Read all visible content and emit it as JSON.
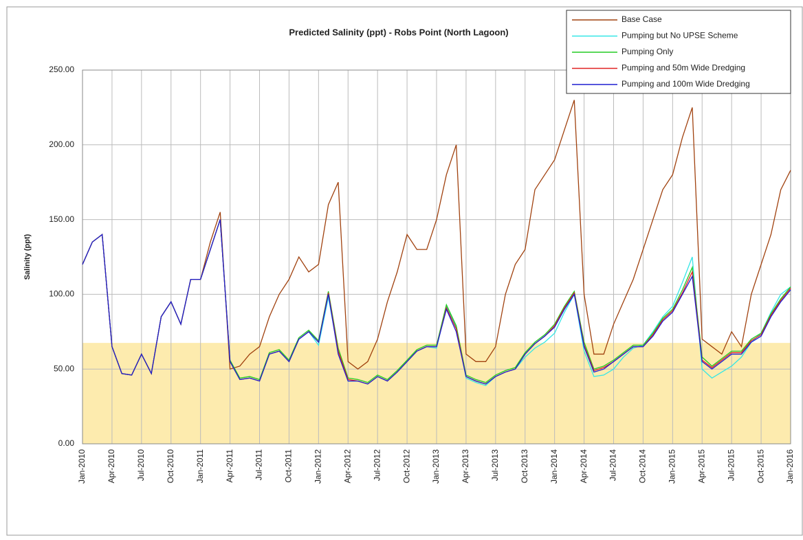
{
  "chart_data": {
    "type": "line",
    "title": "Predicted Salinity (ppt) - Robs Point (North Lagoon)",
    "y_label": "Salinity (ppt)",
    "x": [
      "2010-01",
      "2010-02",
      "2010-03",
      "2010-04",
      "2010-05",
      "2010-06",
      "2010-07",
      "2010-08",
      "2010-09",
      "2010-10",
      "2010-11",
      "2010-12",
      "2011-01",
      "2011-02",
      "2011-03",
      "2011-04",
      "2011-05",
      "2011-06",
      "2011-07",
      "2011-08",
      "2011-09",
      "2011-10",
      "2011-11",
      "2011-12",
      "2012-01",
      "2012-02",
      "2012-03",
      "2012-04",
      "2012-05",
      "2012-06",
      "2012-07",
      "2012-08",
      "2012-09",
      "2012-10",
      "2012-11",
      "2012-12",
      "2013-01",
      "2013-02",
      "2013-03",
      "2013-04",
      "2013-05",
      "2013-06",
      "2013-07",
      "2013-08",
      "2013-09",
      "2013-10",
      "2013-11",
      "2013-12",
      "2014-01",
      "2014-02",
      "2014-03",
      "2014-04",
      "2014-05",
      "2014-06",
      "2014-07",
      "2014-08",
      "2014-09",
      "2014-10",
      "2014-11",
      "2014-12",
      "2015-01",
      "2015-02",
      "2015-03",
      "2015-04",
      "2015-05",
      "2015-06",
      "2015-07",
      "2015-08",
      "2015-09",
      "2015-10",
      "2015-11",
      "2015-12",
      "2016-01"
    ],
    "series": [
      {
        "name": "Base Case",
        "color": "#a0410e",
        "values": [
          120,
          135,
          140,
          65,
          47,
          46,
          60,
          47,
          85,
          95,
          80,
          110,
          110,
          135,
          155,
          50,
          52,
          60,
          65,
          85,
          100,
          110,
          125,
          115,
          120,
          160,
          175,
          55,
          50,
          55,
          70,
          95,
          115,
          140,
          130,
          130,
          150,
          180,
          200,
          60,
          55,
          55,
          65,
          100,
          120,
          130,
          170,
          180,
          190,
          210,
          230,
          100,
          60,
          60,
          80,
          95,
          110,
          130,
          150,
          170,
          180,
          205,
          225,
          70,
          65,
          60,
          75,
          65,
          100,
          120,
          140,
          170,
          183
        ]
      },
      {
        "name": "Pumping but No UPSE Scheme",
        "color": "#33e6e6",
        "values": [
          120,
          135,
          140,
          65,
          47,
          46,
          60,
          47,
          85,
          95,
          80,
          110,
          110,
          130,
          150,
          55,
          43,
          44,
          42,
          60,
          62,
          55,
          70,
          75,
          66,
          98,
          62,
          42,
          42,
          40,
          45,
          42,
          48,
          55,
          62,
          65,
          64,
          92,
          78,
          44,
          41,
          39,
          45,
          48,
          50,
          58,
          64,
          68,
          74,
          88,
          100,
          62,
          45,
          46,
          50,
          58,
          64,
          66,
          75,
          85,
          92,
          108,
          125,
          50,
          44,
          48,
          52,
          58,
          68,
          74,
          88,
          100,
          105
        ]
      },
      {
        "name": "Pumping Only",
        "color": "#22cc22",
        "values": [
          120,
          135,
          140,
          65,
          47,
          46,
          60,
          47,
          85,
          95,
          80,
          110,
          110,
          130,
          150,
          56,
          44,
          45,
          43,
          61,
          63,
          56,
          71,
          76,
          69,
          102,
          64,
          44,
          43,
          41,
          46,
          43,
          49,
          56,
          63,
          66,
          66,
          93,
          79,
          46,
          43,
          41,
          46,
          49,
          51,
          61,
          68,
          73,
          80,
          92,
          102,
          68,
          50,
          52,
          56,
          61,
          66,
          66,
          74,
          84,
          90,
          103,
          118,
          58,
          52,
          57,
          62,
          62,
          70,
          74,
          87,
          97,
          105
        ]
      },
      {
        "name": "Pumping and 50m Wide Dredging",
        "color": "#e02020",
        "values": [
          120,
          135,
          140,
          65,
          47,
          46,
          60,
          47,
          85,
          95,
          80,
          110,
          110,
          130,
          150,
          55,
          43,
          44,
          42,
          60,
          62,
          55,
          70,
          75,
          68,
          101,
          62,
          43,
          42,
          40,
          45,
          42,
          48,
          55,
          62,
          65,
          65,
          91,
          77,
          45,
          42,
          40,
          45,
          48,
          50,
          60,
          67,
          72,
          79,
          91,
          101,
          66,
          49,
          51,
          55,
          60,
          65,
          65,
          73,
          83,
          89,
          101,
          115,
          56,
          51,
          56,
          61,
          61,
          69,
          73,
          86,
          96,
          104
        ]
      },
      {
        "name": "Pumping and 100m Wide Dredging",
        "color": "#1f1fd0",
        "values": [
          120,
          135,
          140,
          65,
          47,
          46,
          60,
          47,
          85,
          95,
          80,
          110,
          110,
          130,
          150,
          55,
          43,
          44,
          42,
          60,
          62,
          55,
          70,
          75,
          68,
          100,
          60,
          42,
          42,
          40,
          45,
          42,
          48,
          55,
          62,
          65,
          65,
          90,
          75,
          45,
          42,
          40,
          45,
          48,
          50,
          60,
          67,
          72,
          78,
          90,
          100,
          65,
          48,
          50,
          55,
          60,
          65,
          65,
          72,
          82,
          88,
          100,
          112,
          55,
          50,
          55,
          60,
          60,
          68,
          72,
          85,
          95,
          103
        ]
      }
    ],
    "band": {
      "ylim": [
        0,
        67.5
      ],
      "color": "#fde7a0"
    },
    "xlim": [
      "2010-01",
      "2016-01"
    ],
    "xticks": [
      {
        "value": "2010-01",
        "label": "Jan-2010"
      },
      {
        "value": "2010-04",
        "label": "Apr-2010"
      },
      {
        "value": "2010-07",
        "label": "Jul-2010"
      },
      {
        "value": "2010-10",
        "label": "Oct-2010"
      },
      {
        "value": "2011-01",
        "label": "Jan-2011"
      },
      {
        "value": "2011-04",
        "label": "Apr-2011"
      },
      {
        "value": "2011-07",
        "label": "Jul-2011"
      },
      {
        "value": "2011-10",
        "label": "Oct-2011"
      },
      {
        "value": "2012-01",
        "label": "Jan-2012"
      },
      {
        "value": "2012-04",
        "label": "Apr-2012"
      },
      {
        "value": "2012-07",
        "label": "Jul-2012"
      },
      {
        "value": "2012-10",
        "label": "Oct-2012"
      },
      {
        "value": "2013-01",
        "label": "Jan-2013"
      },
      {
        "value": "2013-04",
        "label": "Apr-2013"
      },
      {
        "value": "2013-07",
        "label": "Jul-2013"
      },
      {
        "value": "2013-10",
        "label": "Oct-2013"
      },
      {
        "value": "2014-01",
        "label": "Jan-2014"
      },
      {
        "value": "2014-04",
        "label": "Apr-2014"
      },
      {
        "value": "2014-07",
        "label": "Jul-2014"
      },
      {
        "value": "2014-10",
        "label": "Oct-2014"
      },
      {
        "value": "2015-01",
        "label": "Jan-2015"
      },
      {
        "value": "2015-04",
        "label": "Apr-2015"
      },
      {
        "value": "2015-07",
        "label": "Jul-2015"
      },
      {
        "value": "2015-10",
        "label": "Oct-2015"
      },
      {
        "value": "2016-01",
        "label": "Jan-2016"
      }
    ],
    "ylim": [
      0,
      250
    ],
    "yticks": [
      {
        "value": 0,
        "label": "0.00"
      },
      {
        "value": 50,
        "label": "50.00"
      },
      {
        "value": 100,
        "label": "100.00"
      },
      {
        "value": 150,
        "label": "150.00"
      },
      {
        "value": 200,
        "label": "200.00"
      },
      {
        "value": 250,
        "label": "250.00"
      }
    ],
    "grid": true,
    "legend": "top-right"
  }
}
